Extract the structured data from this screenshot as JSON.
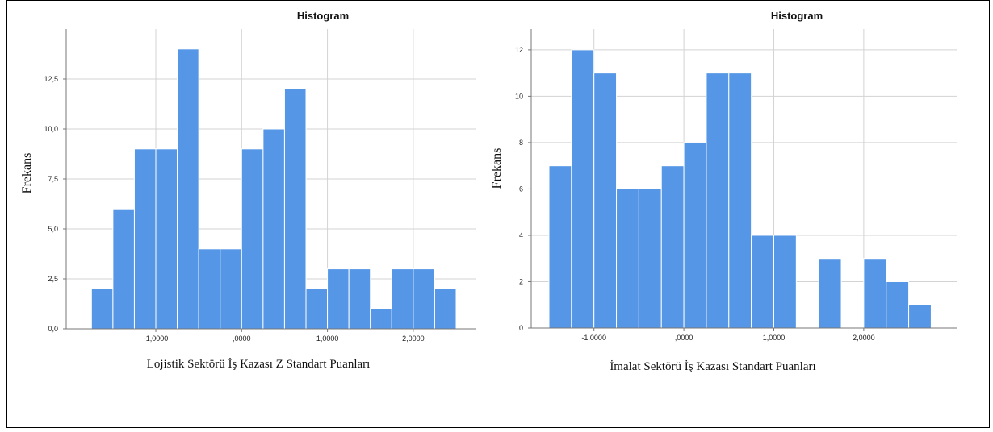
{
  "chart_data": [
    {
      "type": "bar",
      "title": "Histogram",
      "xlabel": "Lojistik Sektörü İş Kazası Z Standart Puanları",
      "ylabel": "Frekans",
      "ylim": [
        0,
        15
      ],
      "xlim": [
        -1.8,
        2.5
      ],
      "yticks": [
        0,
        2.5,
        5.0,
        7.5,
        10.0,
        12.5
      ],
      "ytick_labels": [
        "0,0",
        "2,5",
        "5,0",
        "7,5",
        "10,0",
        "12,5"
      ],
      "xticks": [
        -1,
        0,
        1,
        2
      ],
      "xtick_labels": [
        "-1,0000",
        ",0000",
        "1,0000",
        "2,0000"
      ],
      "grid": true,
      "bins": [
        {
          "x0": -1.75,
          "x1": -1.5,
          "value": 2
        },
        {
          "x0": -1.5,
          "x1": -1.25,
          "value": 6
        },
        {
          "x0": -1.25,
          "x1": -1.0,
          "value": 9
        },
        {
          "x0": -1.0,
          "x1": -0.75,
          "value": 9
        },
        {
          "x0": -0.75,
          "x1": -0.5,
          "value": 14
        },
        {
          "x0": -0.5,
          "x1": -0.25,
          "value": 4
        },
        {
          "x0": -0.25,
          "x1": 0.0,
          "value": 4
        },
        {
          "x0": 0.0,
          "x1": 0.25,
          "value": 9
        },
        {
          "x0": 0.25,
          "x1": 0.5,
          "value": 10
        },
        {
          "x0": 0.5,
          "x1": 0.75,
          "value": 12
        },
        {
          "x0": 0.75,
          "x1": 1.0,
          "value": 2
        },
        {
          "x0": 1.0,
          "x1": 1.25,
          "value": 3
        },
        {
          "x0": 1.25,
          "x1": 1.5,
          "value": 3
        },
        {
          "x0": 1.5,
          "x1": 1.75,
          "value": 1
        },
        {
          "x0": 1.75,
          "x1": 2.0,
          "value": 3
        },
        {
          "x0": 2.0,
          "x1": 2.25,
          "value": 3
        },
        {
          "x0": 2.25,
          "x1": 2.5,
          "value": 2
        }
      ],
      "bar_color": "#5596e6"
    },
    {
      "type": "bar",
      "title": "Histogram",
      "xlabel": "İmalat Sektörü İş Kazası Standart Puanları",
      "ylabel": "Frekans",
      "ylim": [
        0,
        12.9
      ],
      "xlim": [
        -1.5,
        2.8
      ],
      "yticks": [
        0,
        2,
        4,
        6,
        8,
        10,
        12
      ],
      "ytick_labels": [
        "0",
        "2",
        "4",
        "6",
        "8",
        "10",
        "12"
      ],
      "xticks": [
        -1,
        0,
        1,
        2
      ],
      "xtick_labels": [
        "-1,0000",
        ",0000",
        "1,0000",
        "2,0000"
      ],
      "grid": true,
      "bins": [
        {
          "x0": -1.5,
          "x1": -1.25,
          "value": 7
        },
        {
          "x0": -1.25,
          "x1": -1.0,
          "value": 12
        },
        {
          "x0": -1.0,
          "x1": -0.75,
          "value": 11
        },
        {
          "x0": -0.75,
          "x1": -0.5,
          "value": 6
        },
        {
          "x0": -0.5,
          "x1": -0.25,
          "value": 6
        },
        {
          "x0": -0.25,
          "x1": 0.0,
          "value": 7
        },
        {
          "x0": 0.0,
          "x1": 0.25,
          "value": 8
        },
        {
          "x0": 0.25,
          "x1": 0.5,
          "value": 11
        },
        {
          "x0": 0.5,
          "x1": 0.75,
          "value": 11
        },
        {
          "x0": 0.75,
          "x1": 1.0,
          "value": 4
        },
        {
          "x0": 1.0,
          "x1": 1.25,
          "value": 4
        },
        {
          "x0": 1.5,
          "x1": 1.75,
          "value": 3
        },
        {
          "x0": 2.0,
          "x1": 2.25,
          "value": 3
        },
        {
          "x0": 2.25,
          "x1": 2.5,
          "value": 2
        },
        {
          "x0": 2.5,
          "x1": 2.75,
          "value": 1
        }
      ],
      "bar_color": "#5596e6"
    }
  ]
}
